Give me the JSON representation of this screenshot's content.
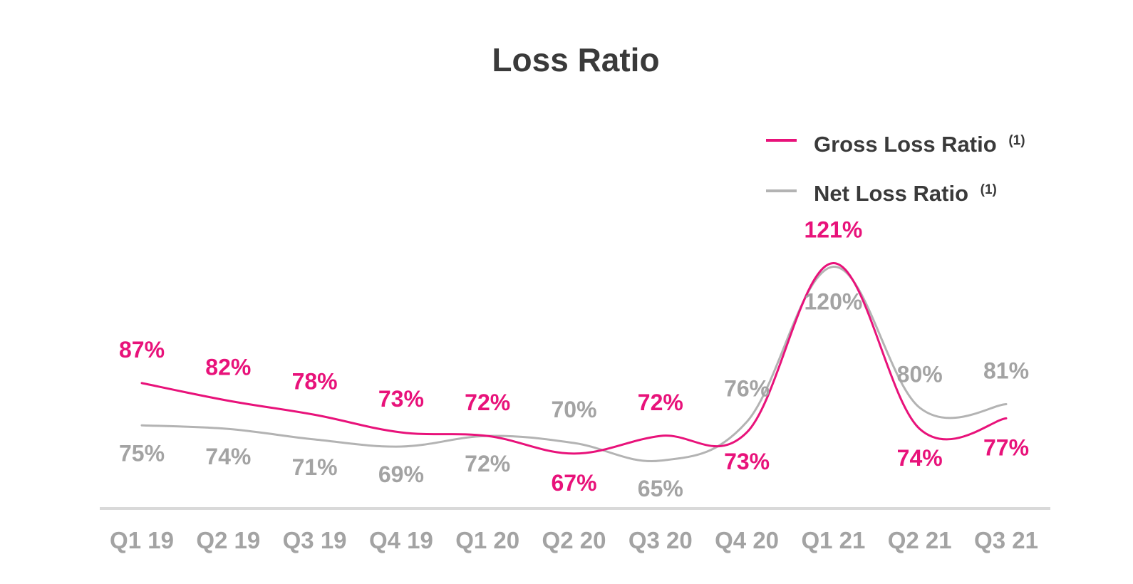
{
  "chart_data": {
    "type": "line",
    "title": "Loss Ratio",
    "categories": [
      "Q1 19",
      "Q2 19",
      "Q3 19",
      "Q4 19",
      "Q1 20",
      "Q2 20",
      "Q3 20",
      "Q4 20",
      "Q1 21",
      "Q2 21",
      "Q3 21"
    ],
    "series": [
      {
        "name": "Gross Loss Ratio",
        "note": "(1)",
        "color": "#e8127a",
        "values": [
          87,
          82,
          78,
          73,
          72,
          67,
          72,
          73,
          121,
          74,
          77
        ],
        "labels": [
          "87%",
          "82%",
          "78%",
          "73%",
          "72%",
          "67%",
          "72%",
          "73%",
          "121%",
          "74%",
          "77%"
        ]
      },
      {
        "name": "Net Loss Ratio",
        "note": "(1)",
        "color": "#b3b3b3",
        "values": [
          75,
          74,
          71,
          69,
          72,
          70,
          65,
          76,
          120,
          80,
          81
        ],
        "labels": [
          "75%",
          "74%",
          "71%",
          "69%",
          "72%",
          "70%",
          "65%",
          "76%",
          "120%",
          "80%",
          "81%"
        ]
      }
    ],
    "legend_position": "top-right",
    "grid": false,
    "tick_color": "#a3a3a3",
    "axis_color": "#d9d9d9"
  }
}
